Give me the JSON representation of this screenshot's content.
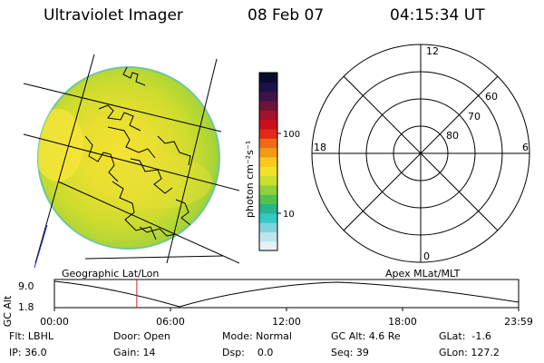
{
  "header": {
    "instrument": "Ultraviolet Imager",
    "date": "08 Feb 07",
    "time": "04:15:34 UT"
  },
  "colorbar": {
    "unit_label": "photon cm⁻²s⁻¹",
    "tick_100": "100",
    "tick_10": "10",
    "colors": [
      "#e6f1f6",
      "#bfe5ec",
      "#7fd3de",
      "#35c9c5",
      "#27b58e",
      "#51c24f",
      "#8fd13b",
      "#c8df2d",
      "#f1e12a",
      "#f8c91e",
      "#f49b16",
      "#ee6a14",
      "#e02a17",
      "#c8101d",
      "#a2122c",
      "#6d1438",
      "#3d1446",
      "#1b1146",
      "#0a0a2a"
    ]
  },
  "globe_panel": {
    "caption": "Geographic Lat/Lon"
  },
  "polar_panel": {
    "caption": "Apex MLat/MLT",
    "mlt_labels": {
      "top": "12",
      "bottom": "0",
      "left": "18",
      "right": "6"
    },
    "lat_labels": [
      "60",
      "70",
      "80"
    ]
  },
  "altitude_plot": {
    "ylabel": "GC Alt",
    "y_ticks": [
      "9.0",
      "1.8"
    ],
    "x_ticks": [
      "00:00",
      "06:00",
      "12:00",
      "18:00",
      "23:59"
    ],
    "marker_time_hours": 4.26
  },
  "info": {
    "flt": "Flt: LBHL",
    "door": "Door: Open",
    "mode": "Mode: Normal",
    "gc_alt": "GC Alt: 4.6 Re",
    "glat": "GLat:  -1.6",
    "ip": "IP: 36.0",
    "gain": "Gain: 14",
    "dsp": "Dsp:    0.0",
    "seq": "Seq: 39",
    "glon": "GLon: 127.2"
  }
}
